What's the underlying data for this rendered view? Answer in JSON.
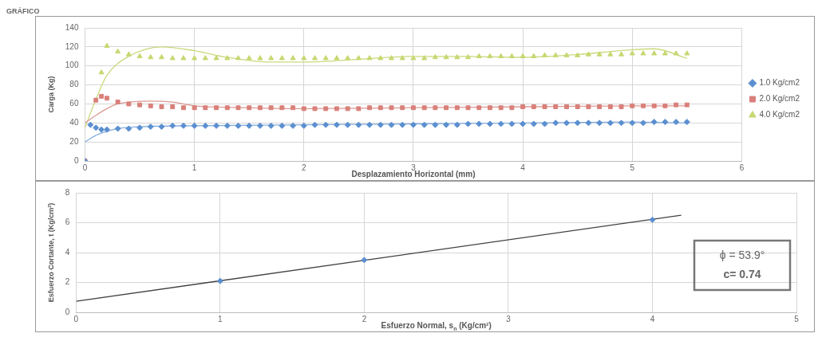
{
  "chart_data": [
    {
      "type": "scatter",
      "title": "GRÁFICO",
      "xlabel": "Desplazamiento Horizontal (mm)",
      "ylabel": "Carga (Kg)",
      "xlim": [
        0,
        6
      ],
      "xticks": [
        0,
        1,
        2,
        3,
        4,
        5,
        6
      ],
      "ylim": [
        0,
        140
      ],
      "yticks": [
        0,
        20,
        40,
        60,
        80,
        100,
        120,
        140
      ],
      "grid": true,
      "legend": "right",
      "line_style": "solid",
      "x": [
        0,
        0.05,
        0.1,
        0.15,
        0.2,
        0.3,
        0.4,
        0.5,
        0.6,
        0.7,
        0.8,
        0.9,
        1.0,
        1.1,
        1.2,
        1.3,
        1.4,
        1.5,
        1.6,
        1.7,
        1.8,
        1.9,
        2.0,
        2.1,
        2.2,
        2.3,
        2.4,
        2.5,
        2.6,
        2.7,
        2.8,
        2.9,
        3.0,
        3.1,
        3.2,
        3.3,
        3.4,
        3.5,
        3.6,
        3.7,
        3.8,
        3.9,
        4.0,
        4.1,
        4.2,
        4.3,
        4.4,
        4.5,
        4.6,
        4.7,
        4.8,
        4.9,
        5.0,
        5.1,
        5.2,
        5.3,
        5.4,
        5.5
      ],
      "series": [
        {
          "name": "1.0 Kg/cm2",
          "color": "#5b8fd0",
          "marker": "diamond",
          "values": [
            0,
            38,
            35,
            33,
            33,
            34,
            34,
            35,
            36,
            36,
            37,
            37,
            37,
            37,
            37,
            37,
            37,
            37,
            37,
            37,
            37,
            37,
            37,
            38,
            38,
            38,
            38,
            38,
            38,
            38,
            38,
            38,
            38,
            38,
            38,
            38,
            38,
            39,
            39,
            39,
            39,
            39,
            39,
            39,
            39,
            40,
            40,
            40,
            40,
            40,
            40,
            40,
            40,
            40,
            41,
            41,
            41,
            41
          ]
        },
        {
          "name": "2.0 Kg/cm2",
          "color": "#d9807a",
          "marker": "square",
          "values": [
            0,
            null,
            64,
            68,
            66,
            62,
            60,
            59,
            58,
            57,
            57,
            56,
            56,
            56,
            56,
            56,
            56,
            56,
            56,
            56,
            56,
            56,
            55,
            55,
            55,
            55,
            55,
            55,
            56,
            56,
            56,
            56,
            56,
            56,
            56,
            56,
            56,
            56,
            56,
            56,
            56,
            56,
            57,
            57,
            57,
            57,
            57,
            57,
            57,
            57,
            57,
            57,
            58,
            58,
            58,
            58,
            59,
            59
          ]
        },
        {
          "name": "4.0 Kg/cm2",
          "color": "#c6d870",
          "marker": "triangle",
          "values": [
            0,
            null,
            null,
            93,
            121,
            115,
            112,
            110,
            109,
            109,
            108,
            108,
            108,
            108,
            108,
            108,
            108,
            108,
            108,
            108,
            108,
            108,
            108,
            108,
            108,
            108,
            108,
            108,
            108,
            108,
            108,
            108,
            108,
            108,
            109,
            109,
            109,
            109,
            110,
            110,
            110,
            110,
            110,
            110,
            111,
            111,
            111,
            111,
            112,
            112,
            112,
            112,
            113,
            113,
            113,
            113,
            113,
            113
          ]
        },
        {
          "type": "line",
          "color": "#86aee0",
          "marker": "none",
          "x": [
            0,
            0.1,
            0.2,
            0.3,
            0.5,
            1.0,
            2.0,
            3.0,
            4.0,
            5.0,
            5.5
          ],
          "values": [
            20,
            27,
            31,
            34,
            36,
            37,
            38,
            39,
            40,
            41,
            40
          ]
        },
        {
          "type": "line",
          "color": "#dc9a94",
          "marker": "none",
          "x": [
            0,
            0.1,
            0.2,
            0.3,
            0.6,
            0.8,
            1.0,
            1.5,
            2.0,
            3.0,
            4.0,
            5.0,
            5.5
          ],
          "values": [
            40,
            48,
            55,
            60,
            63,
            62,
            58,
            56,
            55,
            56,
            57,
            58,
            58
          ]
        },
        {
          "type": "line",
          "color": "#c8da7c",
          "marker": "none",
          "x": [
            0,
            0.1,
            0.2,
            0.4,
            0.7,
            1.0,
            1.3,
            1.7,
            2.0,
            2.5,
            3.0,
            3.5,
            4.0,
            4.5,
            5.0,
            5.2,
            5.5
          ],
          "values": [
            35,
            65,
            90,
            110,
            120,
            116,
            109,
            104,
            104,
            107,
            110,
            110,
            109,
            112,
            117,
            118,
            108
          ]
        }
      ]
    },
    {
      "type": "scatter",
      "xlabel": "Esfuerzo Normal, s$_{n}$ (Kg/cm²)",
      "ylabel": "Esfuerzo Cortante, t (Kg/cm²)",
      "xlim": [
        0,
        5
      ],
      "xticks": [
        0,
        1,
        2,
        3,
        4,
        5
      ],
      "ylim": [
        0,
        8
      ],
      "yticks": [
        0,
        2,
        4,
        6,
        8
      ],
      "grid": true,
      "line_style": "solid",
      "annotations": [
        "ϕ = 53.9°",
        "c= 0.74"
      ],
      "series": [
        {
          "color": "#5b8fd0",
          "marker": "diamond",
          "x": [
            1,
            2,
            4
          ],
          "values": [
            2.1,
            3.5,
            6.2
          ]
        },
        {
          "type": "line",
          "color": "#404040",
          "marker": "none",
          "x": [
            0,
            4.2
          ],
          "values": [
            0.74,
            6.5
          ]
        }
      ]
    }
  ]
}
